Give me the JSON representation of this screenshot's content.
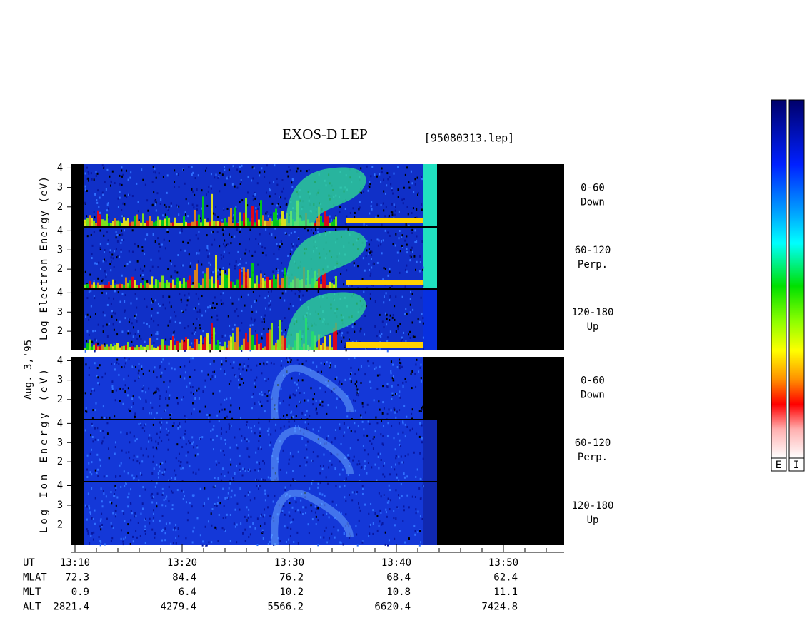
{
  "chart_data": {
    "type": "spectrogram",
    "title": "EXOS-D LEP",
    "file": "[95080313.lep]",
    "date": "Aug. 3,'95",
    "electron_label": "Log Electron Energy (eV)",
    "ion_label": "Log Ion Energy (eV)",
    "ylim": [
      1,
      4.2
    ],
    "yticks": [
      2,
      3,
      4
    ],
    "electron_panels": [
      [
        "0-60",
        "Down"
      ],
      [
        "60-120",
        "Perp."
      ],
      [
        "120-180",
        "Up"
      ]
    ],
    "ion_panels": [
      [
        "0-60",
        "Down"
      ],
      [
        "60-120",
        "Perp."
      ],
      [
        "120-180",
        "Up"
      ]
    ],
    "xticks": [
      "13:10",
      "13:20",
      "13:30",
      "13:40",
      "13:50"
    ],
    "row_labels": [
      "UT",
      "MLAT",
      "MLT",
      "ALT"
    ],
    "MLAT": [
      72.3,
      84.4,
      76.2,
      68.4,
      62.4
    ],
    "MLT": [
      0.9,
      6.4,
      10.2,
      10.8,
      11.1
    ],
    "ALT": [
      2821.4,
      4279.4,
      5566.2,
      6620.4,
      7424.8
    ],
    "colorbar_labels": [
      "E",
      "I"
    ]
  }
}
